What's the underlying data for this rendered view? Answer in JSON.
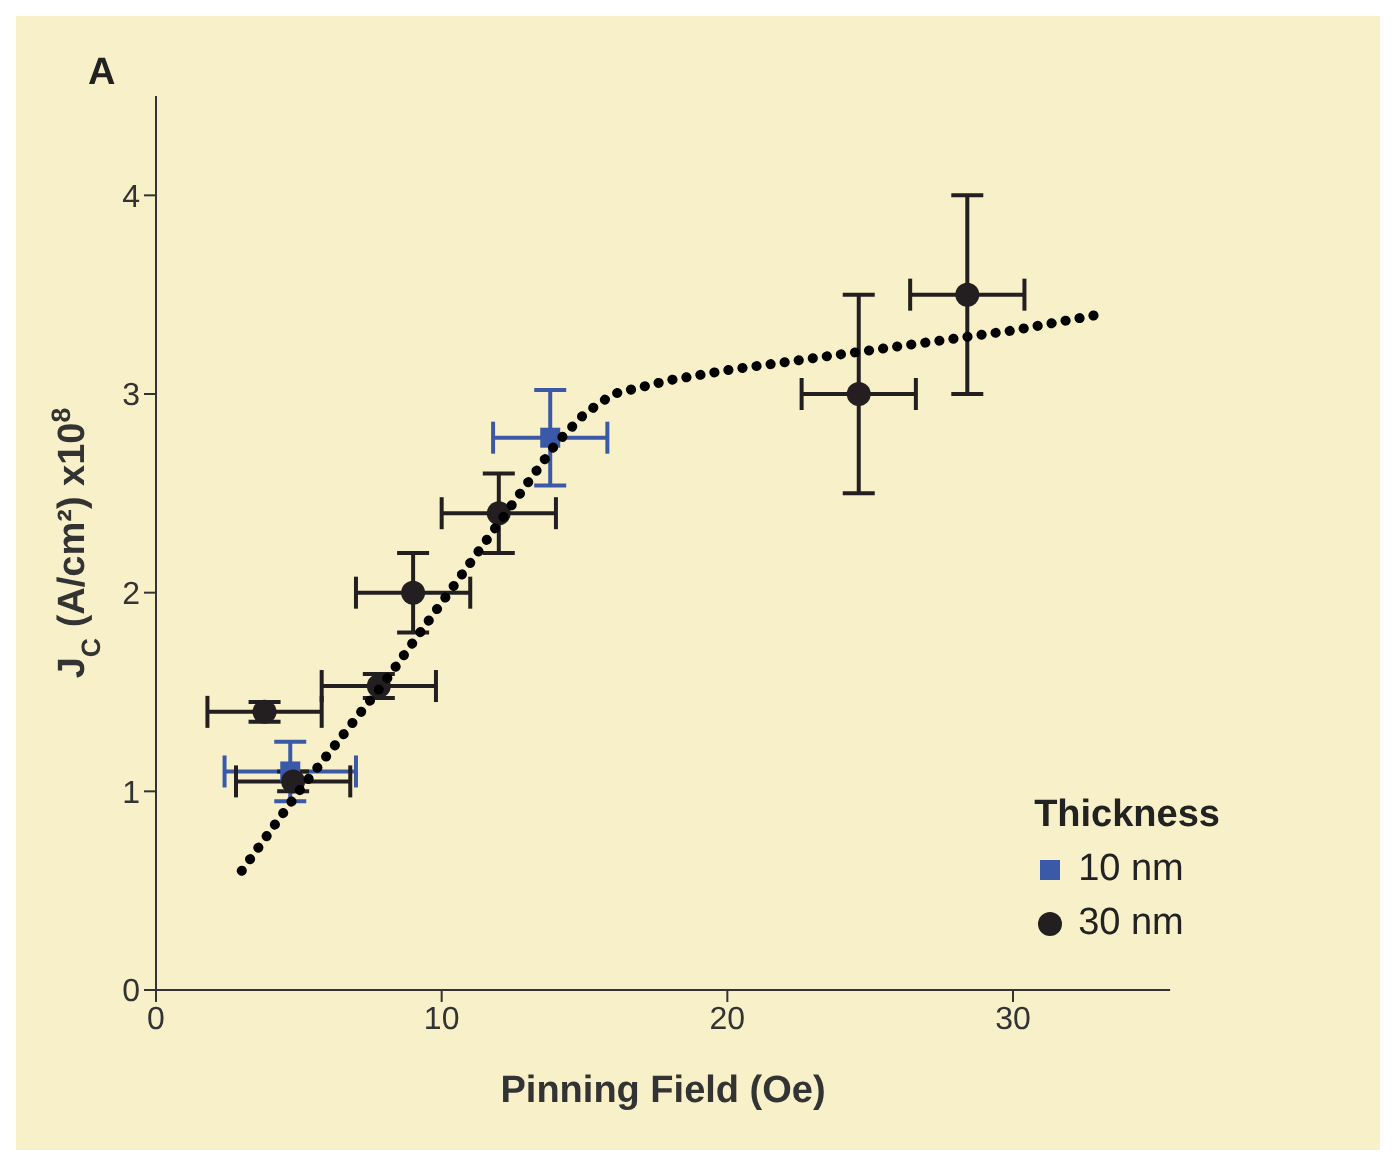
{
  "chart_data": {
    "type": "scatter",
    "annotations": [
      "A"
    ],
    "xlabel": "Pinning Field (Oe)",
    "ylabel": "J$_{C}$ (A/cm²) x10$^{8}$",
    "legend_title": "Thickness",
    "xlim": [
      0,
      35.5
    ],
    "xticks": [
      0,
      10,
      20,
      30
    ],
    "ylim": [
      0,
      4.5
    ],
    "yticks": [
      0,
      1,
      2,
      3,
      4
    ],
    "legend": "bottom right",
    "series": [
      {
        "name": "10 nm",
        "color": "#3a5aa8",
        "marker": "square",
        "x": [
          4.7,
          13.8
        ],
        "values": [
          1.1,
          2.78
        ],
        "errors": [
          0.15,
          0.24
        ],
        "xerrors": [
          2.3,
          2
        ]
      },
      {
        "name": "30 nm",
        "color": "#231f20",
        "marker": "circle",
        "x": [
          3.8,
          4.8,
          7.8,
          9.0,
          12.0,
          24.6,
          28.4
        ],
        "values": [
          1.4,
          1.05,
          1.53,
          2.0,
          2.4,
          3.0,
          3.5
        ],
        "errors": [
          0.05,
          0.05,
          0.06,
          0.2,
          0.2,
          0.5,
          0.5
        ],
        "xerrors": [
          2,
          2,
          2,
          2,
          2,
          2,
          2
        ]
      },
      {
        "type": "line",
        "color": "#000000",
        "line_style": "dotted",
        "x": [
          3,
          5,
          8,
          10,
          12,
          14,
          15,
          16,
          18,
          20,
          25,
          30,
          33
        ],
        "values": [
          0.6,
          1.0,
          1.55,
          1.95,
          2.35,
          2.75,
          2.9,
          3.0,
          3.07,
          3.12,
          3.22,
          3.32,
          3.4
        ]
      }
    ]
  }
}
